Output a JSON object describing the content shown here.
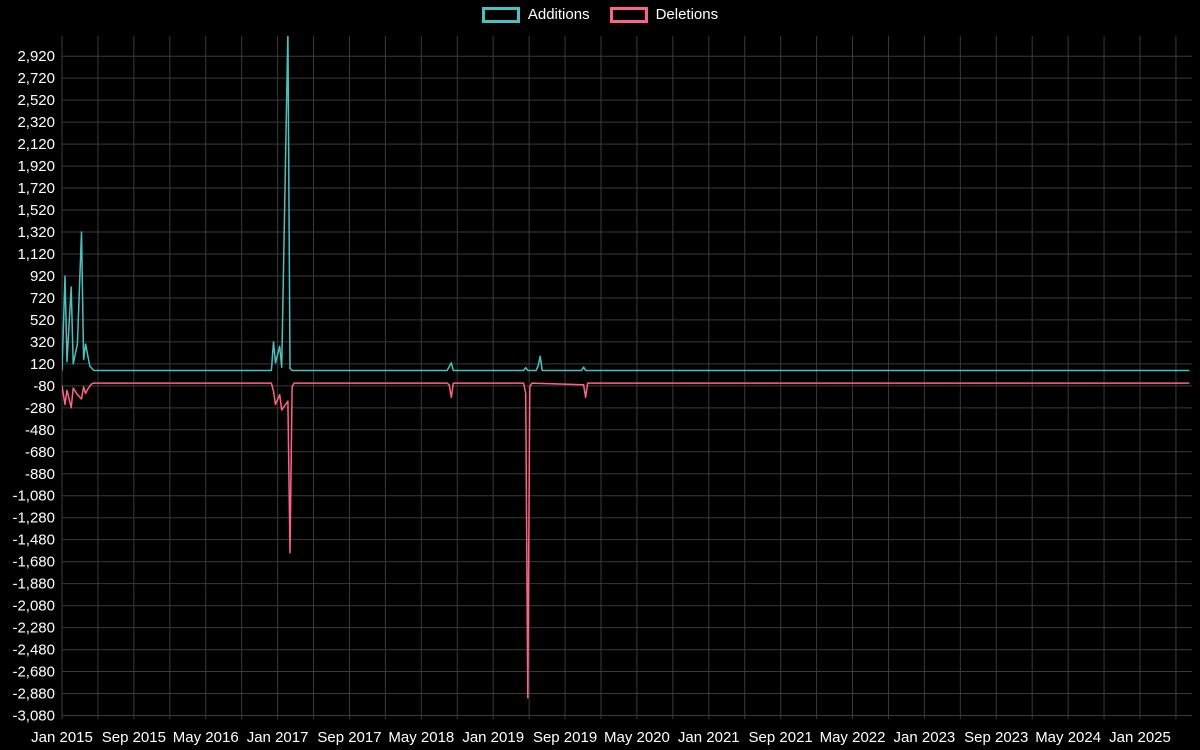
{
  "legend": {
    "items": [
      {
        "label": "Additions"
      },
      {
        "label": "Deletions"
      }
    ]
  },
  "colors": {
    "background": "#000000",
    "grid": "#3a3a3a",
    "text": "#ffffff",
    "additions": "#4bc0c0",
    "deletions": "#ff6384"
  },
  "chart_data": {
    "type": "line",
    "title": "",
    "xlabel": "",
    "ylabel": "",
    "legend_position": "top-center",
    "grid": true,
    "x_axis": {
      "start": "Jan 2015",
      "end": "Jan 2025",
      "label_step_months": 8,
      "grid_step_months": 4,
      "tick_labels": [
        "Jan 2015",
        "Sep 2015",
        "May 2016",
        "Jan 2017",
        "Sep 2017",
        "May 2018",
        "Jan 2019",
        "Sep 2019",
        "May 2020",
        "Jan 2021",
        "Sep 2021",
        "May 2022",
        "Jan 2023",
        "Sep 2023",
        "May 2024",
        "Jan 2025"
      ]
    },
    "y_axis": {
      "min": -3080,
      "max": 2920,
      "step": 200,
      "tick_values": [
        2920,
        2720,
        2520,
        2320,
        2120,
        1920,
        1720,
        1520,
        1320,
        1120,
        920,
        720,
        520,
        320,
        120,
        -80,
        -280,
        -480,
        -680,
        -880,
        -1080,
        -1280,
        -1480,
        -1680,
        -1880,
        -2080,
        -2280,
        -2480,
        -2680,
        -2880,
        -3080
      ],
      "tick_labels": [
        "2,920",
        "2,720",
        "2,520",
        "2,320",
        "2,120",
        "1,920",
        "1,720",
        "1,520",
        "1,320",
        "1,120",
        "920",
        "720",
        "520",
        "320",
        "120",
        "-80",
        "-280",
        "-480",
        "-680",
        "-880",
        "-1,080",
        "-1,280",
        "-1,480",
        "-1,680",
        "-1,880",
        "-2,080",
        "-2,280",
        "-2,480",
        "-2,680",
        "-2,880",
        "-3,080"
      ]
    },
    "series": [
      {
        "name": "Additions",
        "color": "#4bc0c0",
        "points": [
          [
            "2015-01-01",
            60
          ],
          [
            "2015-01-11",
            920
          ],
          [
            "2015-01-18",
            140
          ],
          [
            "2015-02-01",
            820
          ],
          [
            "2015-02-08",
            120
          ],
          [
            "2015-02-22",
            300
          ],
          [
            "2015-03-08",
            1320
          ],
          [
            "2015-03-15",
            160
          ],
          [
            "2015-03-22",
            300
          ],
          [
            "2015-03-29",
            200
          ],
          [
            "2015-04-05",
            100
          ],
          [
            "2015-04-19",
            60
          ],
          [
            "2016-12-11",
            60
          ],
          [
            "2016-12-18",
            320
          ],
          [
            "2016-12-25",
            130
          ],
          [
            "2017-01-08",
            280
          ],
          [
            "2017-01-15",
            90
          ],
          [
            "2017-02-05",
            3150
          ],
          [
            "2017-02-12",
            80
          ],
          [
            "2017-02-19",
            60
          ],
          [
            "2018-07-29",
            60
          ],
          [
            "2018-08-12",
            130
          ],
          [
            "2018-08-19",
            60
          ],
          [
            "2019-04-14",
            60
          ],
          [
            "2019-04-21",
            85
          ],
          [
            "2019-04-28",
            60
          ],
          [
            "2019-05-26",
            60
          ],
          [
            "2019-06-02",
            100
          ],
          [
            "2019-06-09",
            190
          ],
          [
            "2019-06-16",
            60
          ],
          [
            "2019-10-27",
            60
          ],
          [
            "2019-11-03",
            90
          ],
          [
            "2019-11-10",
            60
          ],
          [
            "2025-06-15",
            60
          ]
        ]
      },
      {
        "name": "Deletions",
        "color": "#ff6384",
        "points": [
          [
            "2015-01-01",
            -80
          ],
          [
            "2015-01-11",
            -250
          ],
          [
            "2015-01-18",
            -120
          ],
          [
            "2015-02-01",
            -280
          ],
          [
            "2015-02-08",
            -100
          ],
          [
            "2015-02-22",
            -160
          ],
          [
            "2015-03-08",
            -200
          ],
          [
            "2015-03-15",
            -90
          ],
          [
            "2015-03-22",
            -150
          ],
          [
            "2015-03-29",
            -110
          ],
          [
            "2015-04-12",
            -60
          ],
          [
            "2015-04-19",
            -55
          ],
          [
            "2016-12-11",
            -55
          ],
          [
            "2016-12-18",
            -130
          ],
          [
            "2016-12-25",
            -250
          ],
          [
            "2017-01-08",
            -160
          ],
          [
            "2017-01-15",
            -300
          ],
          [
            "2017-02-05",
            -220
          ],
          [
            "2017-02-12",
            -1600
          ],
          [
            "2017-02-19",
            -90
          ],
          [
            "2017-02-26",
            -55
          ],
          [
            "2018-07-29",
            -55
          ],
          [
            "2018-08-05",
            -70
          ],
          [
            "2018-08-12",
            -185
          ],
          [
            "2018-08-19",
            -55
          ],
          [
            "2019-04-14",
            -55
          ],
          [
            "2019-04-21",
            -150
          ],
          [
            "2019-04-28",
            -2920
          ],
          [
            "2019-05-05",
            -90
          ],
          [
            "2019-05-12",
            -55
          ],
          [
            "2019-11-03",
            -70
          ],
          [
            "2019-11-10",
            -185
          ],
          [
            "2019-11-17",
            -55
          ],
          [
            "2025-06-15",
            -55
          ]
        ]
      }
    ]
  }
}
